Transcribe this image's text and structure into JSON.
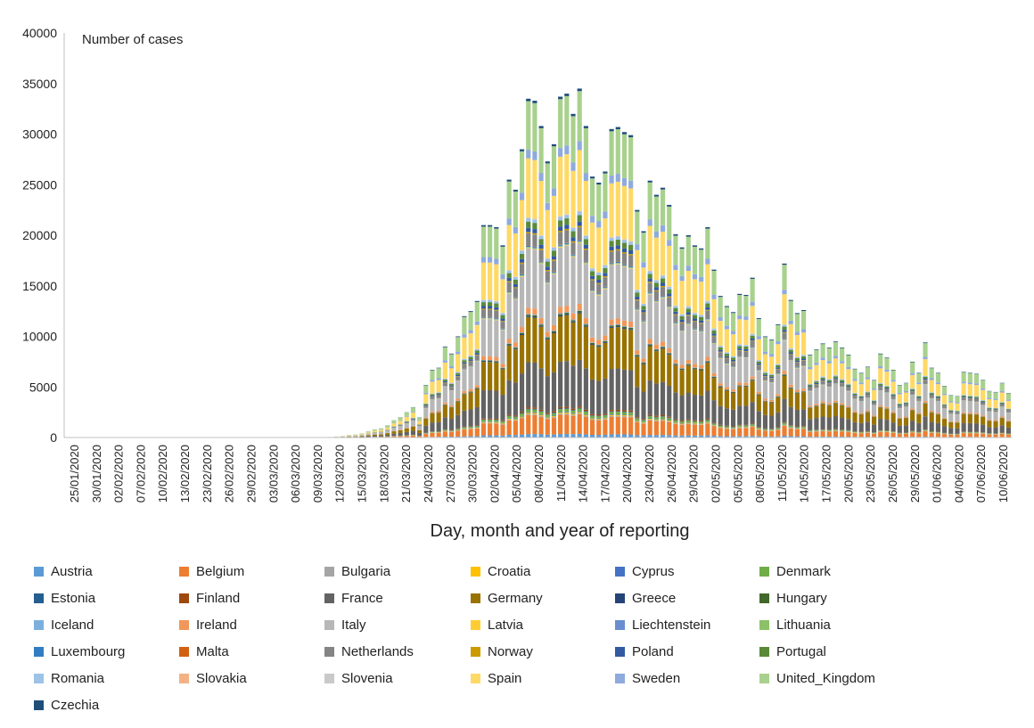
{
  "chart_data": {
    "type": "bar",
    "stacked": true,
    "annotation": "Number of cases",
    "xlabel": "Day, month and year of reporting",
    "ylabel": "",
    "ylim": [
      0,
      40000
    ],
    "yticks": [
      0,
      5000,
      10000,
      15000,
      20000,
      25000,
      30000,
      35000,
      40000
    ],
    "grid": false,
    "legend_position": "bottom",
    "x_tick_labels": [
      "25/01/2020",
      "30/01/2020",
      "02/02/2020",
      "07/02/2020",
      "10/02/2020",
      "13/02/2020",
      "23/02/2020",
      "26/02/2020",
      "29/02/2020",
      "03/03/2020",
      "06/03/2020",
      "09/03/2020",
      "12/03/2020",
      "15/03/2020",
      "18/03/2020",
      "21/03/2020",
      "24/03/2020",
      "27/03/2020",
      "30/03/2020",
      "02/04/2020",
      "05/04/2020",
      "08/04/2020",
      "11/04/2020",
      "14/04/2020",
      "17/04/2020",
      "20/04/2020",
      "23/04/2020",
      "26/04/2020",
      "29/04/2020",
      "02/05/2020",
      "05/05/2020",
      "08/05/2020",
      "11/05/2020",
      "14/05/2020",
      "17/05/2020",
      "20/05/2020",
      "23/05/2020",
      "26/05/2020",
      "29/05/2020",
      "01/06/2020",
      "04/06/2020",
      "07/06/2020",
      "10/06/2020"
    ],
    "totals": [
      0,
      0,
      0,
      0,
      0,
      0,
      0,
      0,
      0,
      0,
      0,
      0,
      0,
      0,
      0,
      0,
      0,
      0,
      0,
      0,
      0,
      0,
      0,
      0,
      0,
      0,
      0,
      0,
      0,
      0,
      0,
      0,
      0,
      0,
      0,
      0,
      0,
      0,
      0,
      0,
      0,
      50,
      100,
      150,
      250,
      300,
      400,
      600,
      800,
      900,
      1200,
      1700,
      2000,
      2500,
      3000,
      2000,
      5200,
      6700,
      6900,
      9000,
      8300,
      10000,
      12000,
      12500,
      13500,
      21000,
      21000,
      20800,
      19000,
      25500,
      24500,
      28500,
      33500,
      33300,
      30800,
      27300,
      29000,
      33700,
      34000,
      32000,
      34500,
      30800,
      25800,
      25200,
      26300,
      30500,
      30700,
      30200,
      29900,
      22500,
      20400,
      25400,
      24000,
      24700,
      23000,
      20100,
      18800,
      20000,
      19000,
      18700,
      20800,
      16600,
      14000,
      13000,
      12400,
      14200,
      14100,
      15800,
      11800,
      10000,
      9700,
      11200,
      17200,
      13600,
      12300,
      12600,
      8200,
      8700,
      9300,
      8900,
      9500,
      8900,
      8200,
      6800,
      6400,
      7000,
      5700,
      8300,
      7900,
      6700,
      5200,
      5400,
      7500,
      6400,
      9400,
      6900,
      6400,
      5100,
      4200,
      4100,
      6500,
      6400,
      6300,
      5700,
      4600,
      4500,
      5400,
      4400
    ],
    "series": [
      {
        "name": "Austria",
        "color": "#5b9bd5",
        "share": 0.01
      },
      {
        "name": "Belgium",
        "color": "#ed7d31",
        "share": 0.055
      },
      {
        "name": "Bulgaria",
        "color": "#a5a5a5",
        "share": 0.003
      },
      {
        "name": "Croatia",
        "color": "#ffc000",
        "share": 0.003
      },
      {
        "name": "Cyprus",
        "color": "#4472c4",
        "share": 0.002
      },
      {
        "name": "Denmark",
        "color": "#70ad47",
        "share": 0.008
      },
      {
        "name": "Estonia",
        "color": "#255e91",
        "share": 0.002
      },
      {
        "name": "Finland",
        "color": "#9e480e",
        "share": 0.004
      },
      {
        "name": "France",
        "color": "#636363",
        "share": 0.13
      },
      {
        "name": "Germany",
        "color": "#997300",
        "share": 0.13
      },
      {
        "name": "Greece",
        "color": "#264478",
        "share": 0.003
      },
      {
        "name": "Hungary",
        "color": "#43682b",
        "share": 0.004
      },
      {
        "name": "Iceland",
        "color": "#7cafdd",
        "share": 0.002
      },
      {
        "name": "Ireland",
        "color": "#f1975a",
        "share": 0.018
      },
      {
        "name": "Italy",
        "color": "#b7b7b7",
        "share": 0.17
      },
      {
        "name": "Latvia",
        "color": "#ffcd33",
        "share": 0.002
      },
      {
        "name": "Liechtenstein",
        "color": "#698ed0",
        "share": 0.001
      },
      {
        "name": "Lithuania",
        "color": "#8cc168",
        "share": 0.002
      },
      {
        "name": "Luxembourg",
        "color": "#327dc2",
        "share": 0.003
      },
      {
        "name": "Malta",
        "color": "#d26012",
        "share": 0.001
      },
      {
        "name": "Netherlands",
        "color": "#848484",
        "share": 0.035
      },
      {
        "name": "Norway",
        "color": "#cc9a00",
        "share": 0.004
      },
      {
        "name": "Poland",
        "color": "#335aa1",
        "share": 0.012
      },
      {
        "name": "Portugal",
        "color": "#5a8a39",
        "share": 0.018
      },
      {
        "name": "Romania",
        "color": "#9dc3e6",
        "share": 0.01
      },
      {
        "name": "Slovakia",
        "color": "#f4b183",
        "share": 0.001
      },
      {
        "name": "Slovenia",
        "color": "#c9c9c9",
        "share": 0.001
      },
      {
        "name": "Spain",
        "color": "#ffd966",
        "share": 0.17
      },
      {
        "name": "Sweden",
        "color": "#8faadc",
        "share": 0.025
      },
      {
        "name": "United_Kingdom",
        "color": "#a9d18e",
        "share": 0.14
      },
      {
        "name": "Czechia",
        "color": "#1f4e79",
        "share": 0.007
      }
    ]
  }
}
